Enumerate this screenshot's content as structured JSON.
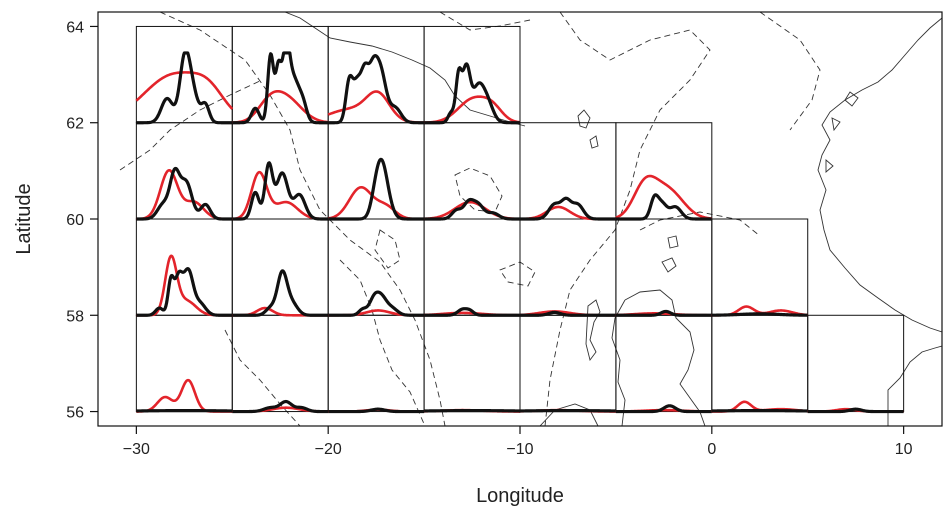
{
  "chart_data": {
    "type": "line",
    "title": "",
    "xlabel": "Longitude",
    "ylabel": "Latitude",
    "xlim": [
      -32,
      12
    ],
    "ylim": [
      55.7,
      64.3
    ],
    "xticks": [
      -30,
      -20,
      -10,
      0,
      10
    ],
    "xtick_labels": [
      "−30",
      "−20",
      "−10",
      "0",
      "10"
    ],
    "yticks": [
      56,
      58,
      60,
      62,
      64
    ],
    "ytick_labels": [
      "56",
      "58",
      "60",
      "62",
      "64"
    ],
    "grid": false,
    "legend": "none",
    "colors": {
      "red": "#e3242b",
      "black": "#111111"
    },
    "panel_size": {
      "lon": 5,
      "lat": 2
    },
    "panels": [
      {
        "lon": -30,
        "lat": 62,
        "red": [
          [
            2.0,
            1.6,
            1.0
          ],
          [
            3.8,
            0.8,
            0.35
          ]
        ],
        "black": [
          [
            1.6,
            0.3,
            0.5
          ],
          [
            2.5,
            0.25,
            0.9
          ],
          [
            2.8,
            0.35,
            0.8
          ],
          [
            3.6,
            0.2,
            0.35
          ]
        ]
      },
      {
        "lon": -25,
        "lat": 62,
        "red": [
          [
            1.9,
            0.6,
            0.3
          ],
          [
            2.8,
            0.8,
            0.5
          ]
        ],
        "black": [
          [
            1.2,
            0.2,
            0.3
          ],
          [
            2.0,
            0.15,
            1.4
          ],
          [
            2.4,
            0.15,
            1.1
          ],
          [
            2.8,
            0.18,
            1.35
          ],
          [
            3.2,
            0.3,
            0.9
          ],
          [
            3.7,
            0.2,
            0.3
          ]
        ]
      },
      {
        "lon": -20,
        "lat": 62,
        "red": [
          [
            1.2,
            1.2,
            0.28
          ],
          [
            2.6,
            0.6,
            0.5
          ]
        ],
        "black": [
          [
            1.1,
            0.18,
            0.85
          ],
          [
            1.5,
            0.2,
            0.75
          ],
          [
            1.9,
            0.2,
            0.95
          ],
          [
            2.3,
            0.22,
            0.75
          ],
          [
            2.7,
            0.3,
            1.1
          ],
          [
            3.5,
            0.3,
            0.3
          ]
        ]
      },
      {
        "lon": -15,
        "lat": 62,
        "red": [
          [
            2.6,
            0.8,
            0.5
          ],
          [
            3.6,
            0.5,
            0.2
          ]
        ],
        "black": [
          [
            1.4,
            0.15,
            0.2
          ],
          [
            1.8,
            0.15,
            0.95
          ],
          [
            2.2,
            0.2,
            1.1
          ],
          [
            2.8,
            0.3,
            0.7
          ],
          [
            3.3,
            0.3,
            0.4
          ]
        ]
      },
      {
        "lon": -30,
        "lat": 60,
        "red": [
          [
            1.7,
            0.45,
            1.0
          ],
          [
            3.0,
            0.5,
            0.35
          ]
        ],
        "black": [
          [
            1.4,
            0.3,
            0.3
          ],
          [
            2.0,
            0.25,
            0.9
          ],
          [
            2.6,
            0.3,
            0.75
          ],
          [
            3.6,
            0.25,
            0.3
          ]
        ]
      },
      {
        "lon": -25,
        "lat": 60,
        "red": [
          [
            1.4,
            0.4,
            0.95
          ],
          [
            2.8,
            0.6,
            0.35
          ]
        ],
        "black": [
          [
            1.2,
            0.2,
            0.55
          ],
          [
            1.9,
            0.2,
            1.1
          ],
          [
            2.6,
            0.3,
            0.95
          ],
          [
            3.5,
            0.3,
            0.5
          ]
        ]
      },
      {
        "lon": -20,
        "lat": 60,
        "red": [
          [
            1.7,
            0.6,
            0.65
          ],
          [
            3.0,
            0.5,
            0.25
          ]
        ],
        "black": [
          [
            2.5,
            0.25,
            0.55
          ],
          [
            2.8,
            0.25,
            0.6
          ],
          [
            3.0,
            0.3,
            0.45
          ]
        ]
      },
      {
        "lon": -15,
        "lat": 60,
        "red": [
          [
            2.4,
            0.8,
            0.35
          ]
        ],
        "black": [
          [
            1.7,
            0.25,
            0.18
          ],
          [
            2.3,
            0.25,
            0.3
          ],
          [
            2.8,
            0.3,
            0.3
          ],
          [
            3.6,
            0.3,
            0.12
          ]
        ]
      },
      {
        "lon": -10,
        "lat": 60,
        "red": [
          [
            2.0,
            0.6,
            0.25
          ]
        ],
        "black": [
          [
            1.8,
            0.3,
            0.3
          ],
          [
            2.4,
            0.25,
            0.35
          ],
          [
            3.0,
            0.3,
            0.3
          ]
        ]
      },
      {
        "lon": -5,
        "lat": 60,
        "red": [
          [
            1.5,
            0.6,
            0.65
          ],
          [
            2.7,
            0.8,
            0.6
          ]
        ],
        "black": [
          [
            2.0,
            0.2,
            0.4
          ],
          [
            2.4,
            0.25,
            0.3
          ],
          [
            3.1,
            0.3,
            0.25
          ]
        ]
      },
      {
        "lon": -30,
        "lat": 58,
        "red": [
          [
            1.8,
            0.3,
            1.15
          ],
          [
            2.6,
            0.5,
            0.3
          ]
        ],
        "black": [
          [
            1.2,
            0.2,
            0.15
          ],
          [
            1.8,
            0.15,
            0.7
          ],
          [
            2.2,
            0.2,
            0.75
          ],
          [
            2.7,
            0.25,
            0.9
          ],
          [
            3.3,
            0.3,
            0.25
          ]
        ]
      },
      {
        "lon": -25,
        "lat": 58,
        "red": [
          [
            1.7,
            0.4,
            0.15
          ]
        ],
        "black": [
          [
            2.0,
            0.25,
            0.15
          ],
          [
            2.6,
            0.25,
            0.85
          ],
          [
            3.1,
            0.3,
            0.25
          ]
        ]
      },
      {
        "lon": -20,
        "lat": 58,
        "red": [
          [
            2.6,
            0.6,
            0.1
          ]
        ],
        "black": [
          [
            1.8,
            0.2,
            0.12
          ],
          [
            2.4,
            0.25,
            0.35
          ],
          [
            2.8,
            0.25,
            0.3
          ],
          [
            3.3,
            0.3,
            0.15
          ]
        ]
      },
      {
        "lon": -15,
        "lat": 58,
        "red": [
          [
            2.0,
            1.0,
            0.05
          ]
        ],
        "black": [
          [
            2.0,
            0.25,
            0.12
          ],
          [
            2.4,
            0.2,
            0.08
          ]
        ]
      },
      {
        "lon": -10,
        "lat": 58,
        "red": [
          [
            1.8,
            0.8,
            0.08
          ]
        ],
        "black": [
          [
            1.8,
            0.3,
            0.06
          ]
        ]
      },
      {
        "lon": -5,
        "lat": 58,
        "red": [
          [
            2.0,
            1.0,
            0.04
          ]
        ],
        "black": [
          [
            2.6,
            0.25,
            0.08
          ]
        ]
      },
      {
        "lon": 0,
        "lat": 58,
        "red": [
          [
            1.8,
            0.4,
            0.18
          ],
          [
            3.6,
            0.6,
            0.1
          ]
        ],
        "black": [
          [
            2.5,
            1.0,
            0.03
          ]
        ]
      },
      {
        "lon": -30,
        "lat": 56,
        "red": [
          [
            1.5,
            0.4,
            0.3
          ],
          [
            2.7,
            0.35,
            0.65
          ]
        ],
        "black": [
          [
            2.5,
            2.5,
            0.02
          ]
        ]
      },
      {
        "lon": -25,
        "lat": 56,
        "red": [
          [
            2.8,
            0.7,
            0.08
          ]
        ],
        "black": [
          [
            2.0,
            0.35,
            0.08
          ],
          [
            2.8,
            0.3,
            0.2
          ],
          [
            3.6,
            0.3,
            0.08
          ]
        ]
      },
      {
        "lon": -20,
        "lat": 56,
        "red": [
          [
            2.6,
            0.6,
            0.04
          ]
        ],
        "black": [
          [
            2.6,
            0.35,
            0.05
          ]
        ]
      },
      {
        "lon": -15,
        "lat": 56,
        "red": [
          [
            2.0,
            1.0,
            0.03
          ]
        ],
        "black": [
          [
            2.5,
            2.5,
            0.02
          ]
        ]
      },
      {
        "lon": -10,
        "lat": 56,
        "red": [
          [
            2.0,
            1.0,
            0.03
          ]
        ],
        "black": [
          [
            2.5,
            2.5,
            0.02
          ]
        ]
      },
      {
        "lon": -5,
        "lat": 56,
        "red": [
          [
            2.5,
            1.0,
            0.03
          ]
        ],
        "black": [
          [
            2.8,
            0.3,
            0.12
          ]
        ]
      },
      {
        "lon": 0,
        "lat": 56,
        "red": [
          [
            1.7,
            0.35,
            0.2
          ],
          [
            3.6,
            0.8,
            0.05
          ]
        ],
        "black": [
          [
            2.5,
            2.5,
            0.02
          ]
        ]
      },
      {
        "lon": 5,
        "lat": 56,
        "red": [
          [
            2.0,
            0.5,
            0.05
          ]
        ],
        "black": [
          [
            2.5,
            0.3,
            0.05
          ]
        ]
      }
    ]
  }
}
